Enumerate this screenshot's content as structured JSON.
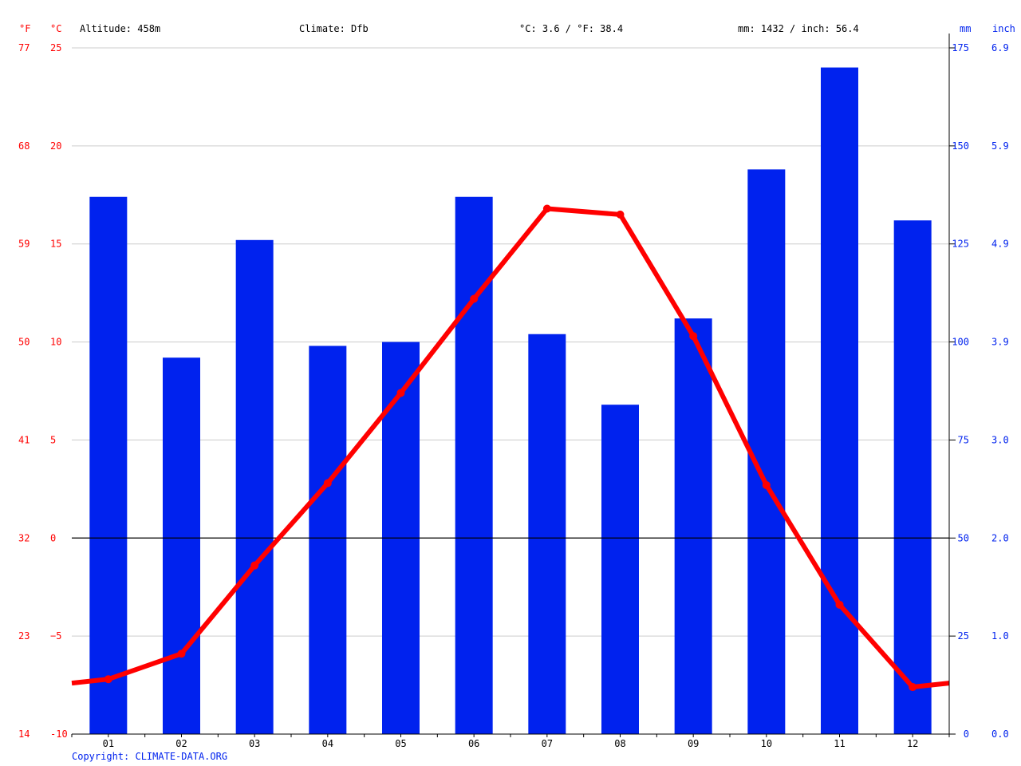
{
  "header": {
    "temp_f_unit": "°F",
    "temp_c_unit": "°C",
    "altitude": "Altitude: 458m",
    "climate": "Climate: Dfb",
    "mean_temp": "°C: 3.6 / °F: 38.4",
    "precip_total": "mm: 1432 / inch: 56.4",
    "precip_mm_unit": "mm",
    "precip_inch_unit": "inch"
  },
  "footer": {
    "copyright": "Copyright: CLIMATE-DATA.ORG"
  },
  "colors": {
    "temperature": "#ff0000",
    "precipitation": "#0022ee",
    "zero_line": "#000000",
    "grid": "#cccccc"
  },
  "chart_data": {
    "type": "bar",
    "categories": [
      "01",
      "02",
      "03",
      "04",
      "05",
      "06",
      "07",
      "08",
      "09",
      "10",
      "11",
      "12"
    ],
    "series": [
      {
        "kind": "bar",
        "axis": "mm",
        "values": [
          137,
          96,
          126,
          99,
          100,
          137,
          102,
          84,
          106,
          144,
          170,
          131
        ]
      },
      {
        "kind": "line",
        "axis": "celsius",
        "values": [
          -7.2,
          -5.9,
          -1.4,
          2.8,
          7.4,
          12.2,
          16.8,
          16.5,
          10.3,
          2.7,
          -3.4,
          -7.6
        ]
      }
    ],
    "left_axis_celsius": {
      "ylim": [
        -10,
        25
      ],
      "ticks": [
        "-10",
        "−5",
        "0",
        "5",
        "10",
        "15",
        "20",
        "25"
      ]
    },
    "left_axis_fahrenheit": {
      "ticks": [
        "14",
        "23",
        "32",
        "41",
        "50",
        "59",
        "68",
        "77"
      ]
    },
    "right_axis_mm": {
      "ylim": [
        0,
        175
      ],
      "ticks": [
        "0",
        "25",
        "50",
        "75",
        "100",
        "125",
        "150",
        "175"
      ]
    },
    "right_axis_inch": {
      "ticks": [
        "0.0",
        "1.0",
        "2.0",
        "3.0",
        "3.9",
        "4.9",
        "5.9",
        "6.9"
      ]
    },
    "line_edge_values": {
      "start": -7.4,
      "end": -7.4
    },
    "grid": true
  }
}
